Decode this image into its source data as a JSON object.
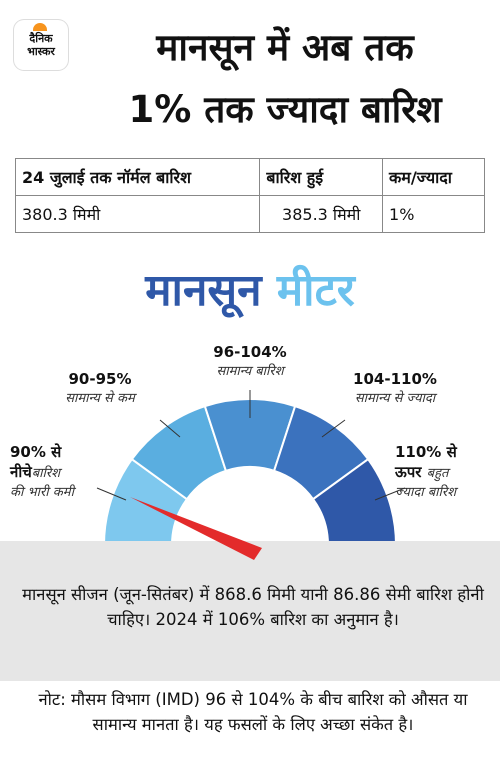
{
  "header": {
    "logo_top": "दैनिक",
    "logo_bottom": "भास्कर",
    "title_lines": [
      "मानसून में अब तक",
      "1% तक ज्यादा बारिश"
    ]
  },
  "table": {
    "columns": [
      "24 जुलाई तक नॉर्मल बारिश",
      "बारिश हुई",
      "कम/ज्यादा"
    ],
    "rows": [
      [
        "380.3 मिमी",
        "385.3 मिमी",
        "1%"
      ]
    ]
  },
  "meter": {
    "title_part1": "मानसून",
    "title_part2": "मीटर",
    "segments": [
      {
        "range_lines": [
          "90% से",
          "नीचे"
        ],
        "desc_lines": [
          "बारिश",
          "की भारी कमी"
        ]
      },
      {
        "range_lines": [
          "90-95%"
        ],
        "desc_lines": [
          "सामान्य से कम"
        ]
      },
      {
        "range_lines": [
          "96-104%"
        ],
        "desc_lines": [
          "सामान्य बारिश"
        ]
      },
      {
        "range_lines": [
          "104-110%"
        ],
        "desc_lines": [
          "सामान्य से ज्यादा"
        ]
      },
      {
        "range_lines": [
          "110% से",
          "ऊपर"
        ],
        "desc_lines": [
          "बहुत",
          "ज्यादा बारिश"
        ]
      }
    ]
  },
  "info": "मानसून सीजन (जून-सितंबर) में 868.6 मिमी यानी 86.86 सेमी बारिश होनी चाहिए। 2024 में 106% बारिश का अनुमान है।",
  "note": "नोट: मौसम विभाग (IMD) 96 से 104% के बीच बारिश को औसत या सामान्य मानता है। यह फसलों के लिए अच्छा संकेत है।"
}
